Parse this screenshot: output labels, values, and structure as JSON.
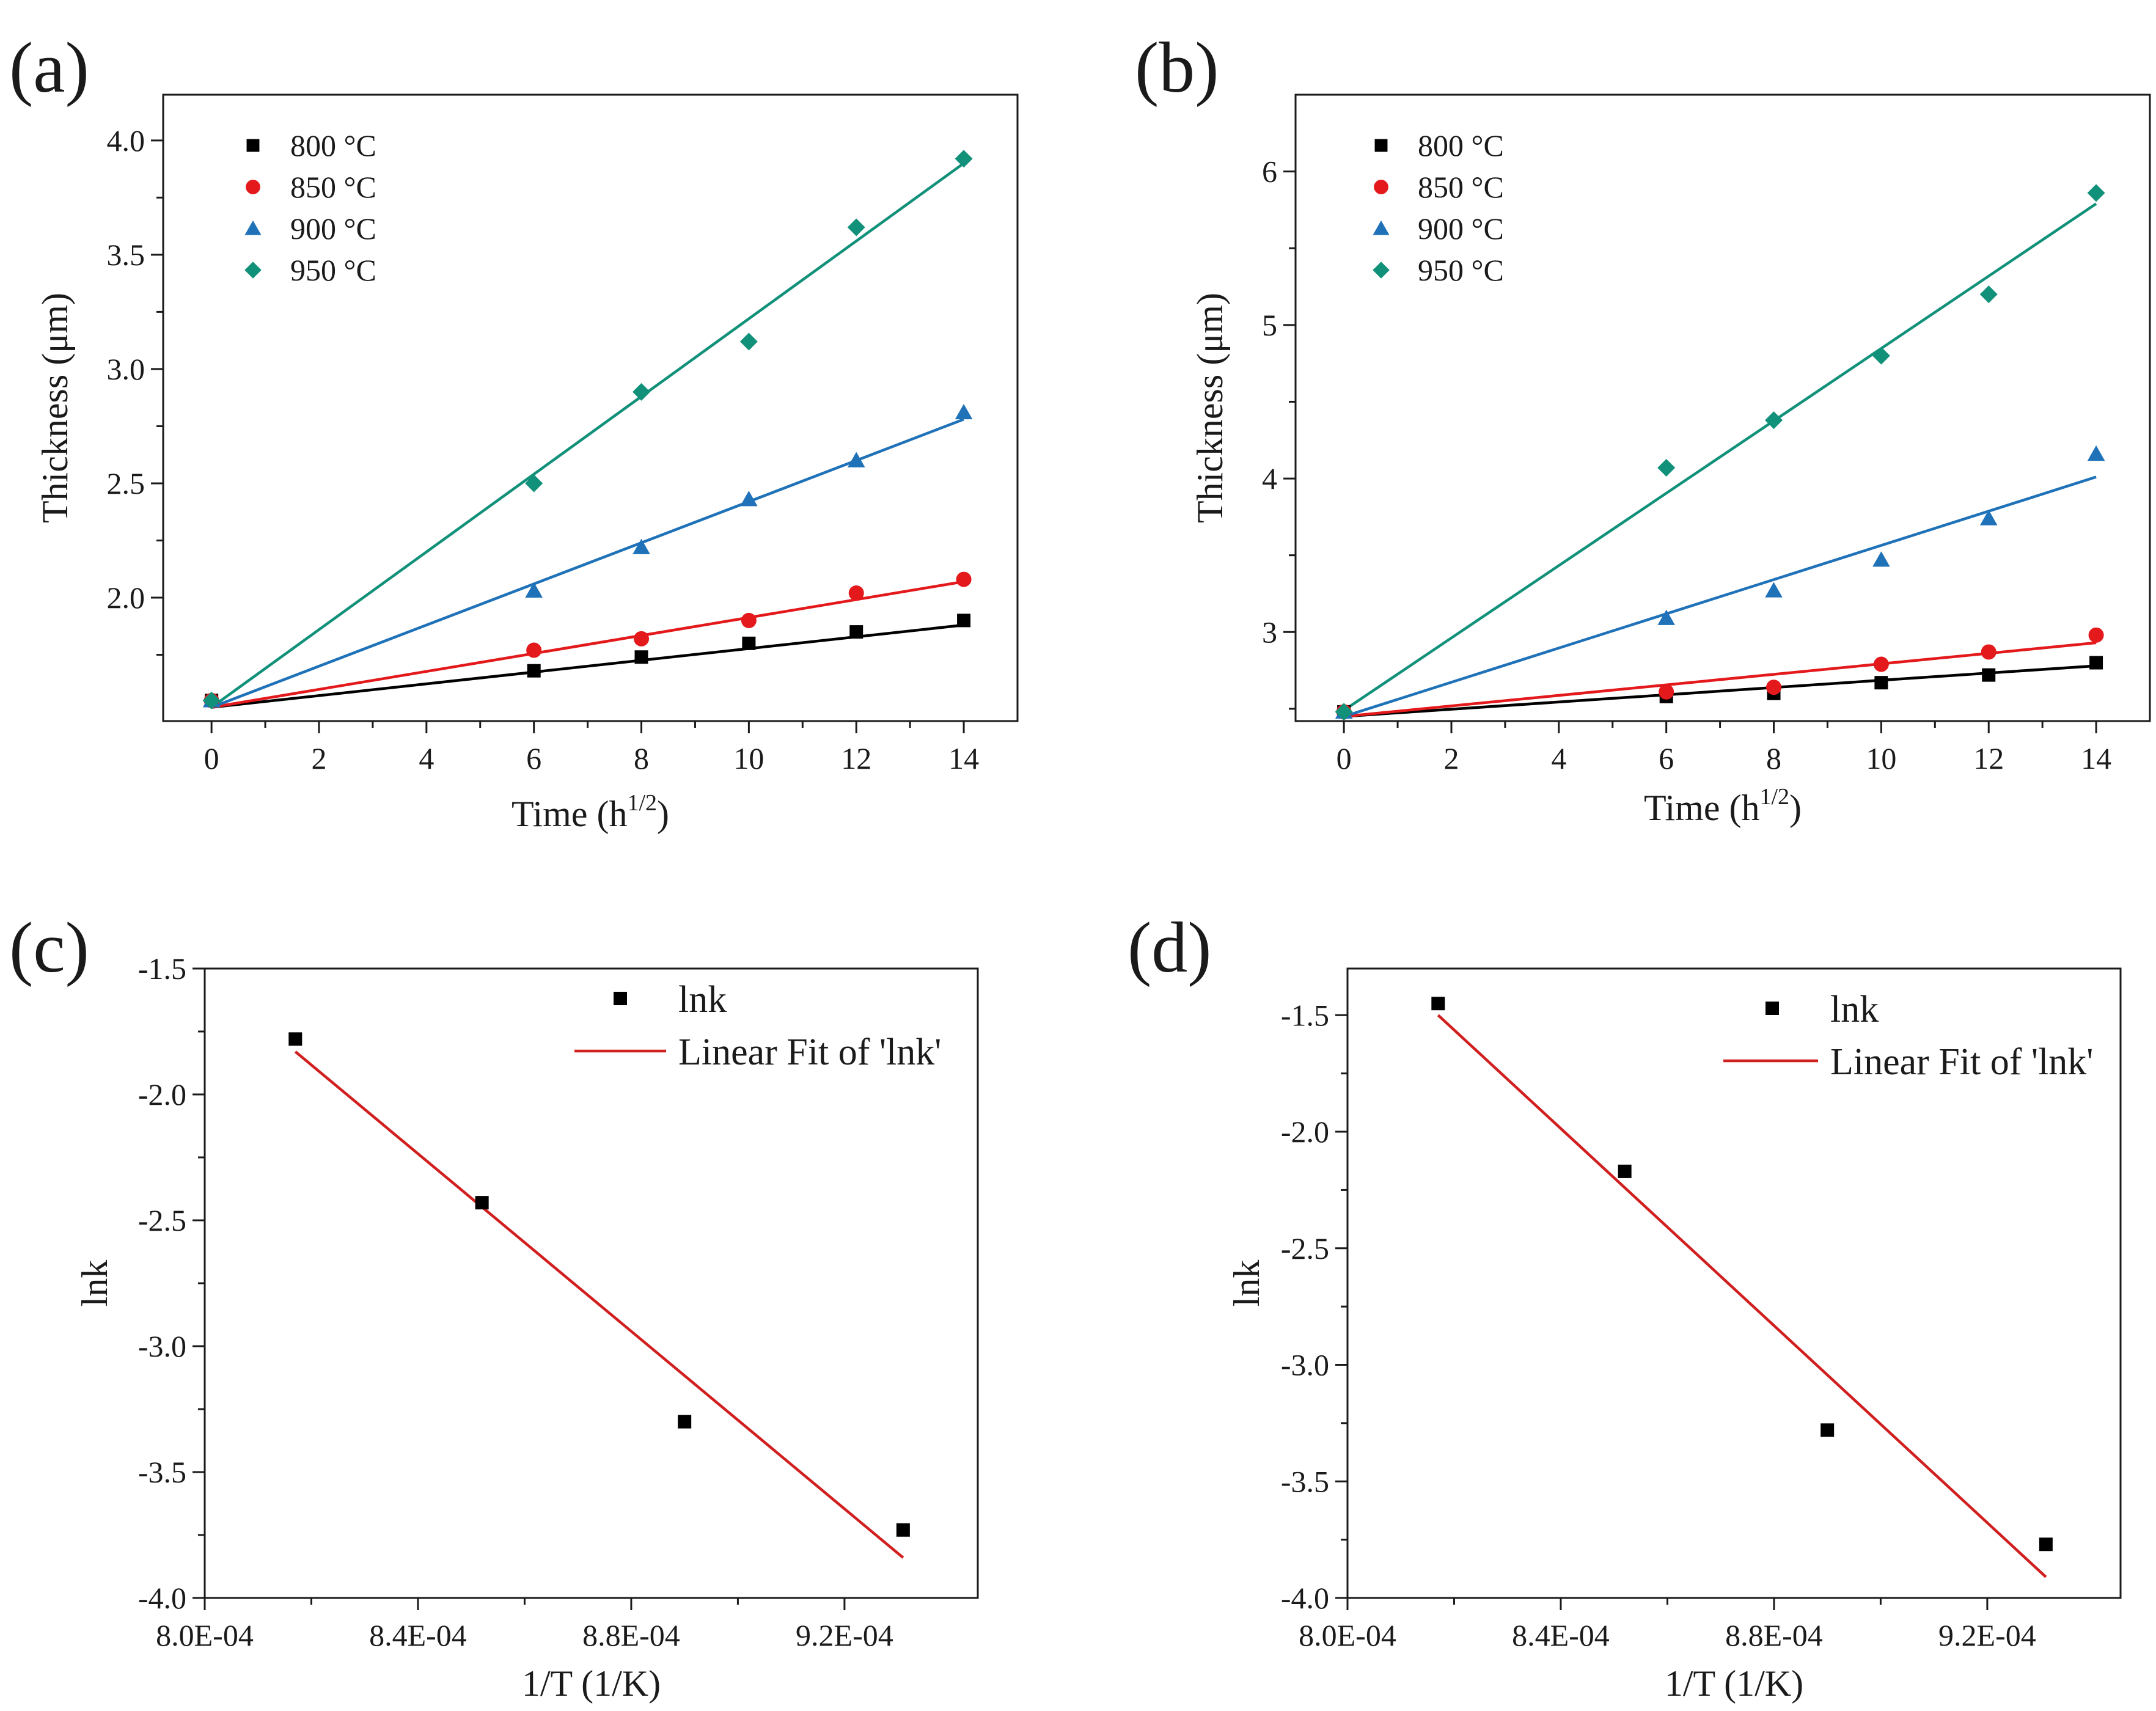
{
  "chart_data": [
    {
      "id": "a",
      "panel_label": "(a)",
      "type": "scatter",
      "xlabel": "Time (h",
      "xlabel_sup": "1/2",
      "xlabel_close": ")",
      "ylabel": "Thickness (μm)",
      "xlim": [
        -0.9,
        15
      ],
      "ylim": [
        1.46,
        4.2
      ],
      "xticks": [
        0,
        2,
        4,
        6,
        8,
        10,
        12,
        14
      ],
      "xtick_labels": [
        "0",
        "2",
        "4",
        "6",
        "8",
        "10",
        "12",
        "14"
      ],
      "yticks": [
        2.0,
        2.5,
        3.0,
        3.5,
        4.0
      ],
      "ytick_labels": [
        "2.0",
        "2.5",
        "3.0",
        "3.5",
        "4.0"
      ],
      "legend_position": "top-left",
      "series": [
        {
          "name": "800 °C",
          "color": "#000000",
          "marker": "square",
          "x": [
            0,
            6,
            8,
            10,
            12,
            14
          ],
          "y": [
            1.55,
            1.68,
            1.74,
            1.8,
            1.85,
            1.9
          ],
          "fit": [
            [
              0,
              1.52
            ],
            [
              14,
              1.88
            ]
          ]
        },
        {
          "name": "850 °C",
          "color": "#e3191c",
          "marker": "circle",
          "x": [
            0,
            6,
            8,
            10,
            12,
            14
          ],
          "y": [
            1.55,
            1.77,
            1.82,
            1.9,
            2.02,
            2.08
          ],
          "fit": [
            [
              0,
              1.52
            ],
            [
              14,
              2.07
            ]
          ]
        },
        {
          "name": "900 °C",
          "color": "#1f72b8",
          "marker": "triangle",
          "x": [
            0,
            6,
            8,
            10,
            12,
            14
          ],
          "y": [
            1.55,
            2.03,
            2.22,
            2.43,
            2.6,
            2.81
          ],
          "fit": [
            [
              0,
              1.52
            ],
            [
              14,
              2.78
            ]
          ]
        },
        {
          "name": "950 °C",
          "color": "#12917a",
          "marker": "diamond",
          "x": [
            0,
            6,
            8,
            10,
            12,
            14
          ],
          "y": [
            1.55,
            2.5,
            2.9,
            3.12,
            3.62,
            3.92
          ],
          "fit": [
            [
              0,
              1.52
            ],
            [
              14,
              3.9
            ]
          ]
        }
      ]
    },
    {
      "id": "b",
      "panel_label": "(b)",
      "type": "scatter",
      "xlabel": "Time (h",
      "xlabel_sup": "1/2",
      "xlabel_close": ")",
      "ylabel": "Thickness (μm)",
      "xlim": [
        -0.9,
        15
      ],
      "ylim": [
        2.42,
        6.5
      ],
      "xticks": [
        0,
        2,
        4,
        6,
        8,
        10,
        12,
        14
      ],
      "xtick_labels": [
        "0",
        "2",
        "4",
        "6",
        "8",
        "10",
        "12",
        "14"
      ],
      "yticks": [
        3,
        4,
        5,
        6
      ],
      "ytick_labels": [
        "3",
        "4",
        "5",
        "6"
      ],
      "legend_position": "top-left",
      "series": [
        {
          "name": "800 °C",
          "color": "#000000",
          "marker": "square",
          "x": [
            0,
            6,
            8,
            10,
            12,
            14
          ],
          "y": [
            2.48,
            2.58,
            2.6,
            2.67,
            2.72,
            2.8
          ],
          "fit": [
            [
              0,
              2.45
            ],
            [
              14,
              2.78
            ]
          ]
        },
        {
          "name": "850 °C",
          "color": "#e3191c",
          "marker": "circle",
          "x": [
            0,
            6,
            8,
            10,
            12,
            14
          ],
          "y": [
            2.48,
            2.61,
            2.64,
            2.79,
            2.87,
            2.98
          ],
          "fit": [
            [
              0,
              2.45
            ],
            [
              14,
              2.93
            ]
          ]
        },
        {
          "name": "900 °C",
          "color": "#1f72b8",
          "marker": "triangle",
          "x": [
            0,
            6,
            8,
            10,
            12,
            14
          ],
          "y": [
            2.48,
            3.09,
            3.27,
            3.47,
            3.74,
            4.16
          ],
          "fit": [
            [
              0,
              2.45
            ],
            [
              14,
              4.01
            ]
          ]
        },
        {
          "name": "950 °C",
          "color": "#12917a",
          "marker": "diamond",
          "x": [
            0,
            6,
            8,
            10,
            12,
            14
          ],
          "y": [
            2.48,
            4.07,
            4.38,
            4.8,
            5.2,
            5.86
          ],
          "fit": [
            [
              0,
              2.49
            ],
            [
              14,
              5.79
            ]
          ]
        }
      ]
    },
    {
      "id": "c",
      "panel_label": "(c)",
      "type": "scatter",
      "xlabel": "1/T (1/K)",
      "ylabel": "lnk",
      "xlim": [
        0.0008,
        0.000945
      ],
      "ylim": [
        -4.0,
        -1.5
      ],
      "xticks": [
        0.0008,
        0.00084,
        0.00088,
        0.00092
      ],
      "xtick_labels": [
        "8.0E-04",
        "8.4E-04",
        "8.8E-04",
        "9.2E-04"
      ],
      "yticks": [
        -4.0,
        -3.5,
        -3.0,
        -2.5,
        -2.0,
        -1.5
      ],
      "ytick_labels": [
        "-4.0",
        "-3.5",
        "-3.0",
        "-2.5",
        "-2.0",
        "-1.5"
      ],
      "legend_position": "top-right",
      "series": [
        {
          "name": "lnk",
          "color": "#000000",
          "marker": "square",
          "x": [
            0.000817,
            0.000852,
            0.00089,
            0.000931
          ],
          "y": [
            -1.78,
            -2.43,
            -3.3,
            -3.73
          ]
        },
        {
          "name": "Linear Fit of 'lnk'",
          "color": "#d11f1f",
          "marker": "line",
          "fit": [
            [
              0.000817,
              -1.83
            ],
            [
              0.000931,
              -3.84
            ]
          ]
        }
      ]
    },
    {
      "id": "d",
      "panel_label": "(d)",
      "type": "scatter",
      "xlabel": "1/T (1/K)",
      "ylabel": "lnk",
      "xlim": [
        0.0008,
        0.000945
      ],
      "ylim": [
        -4.0,
        -1.3
      ],
      "xticks": [
        0.0008,
        0.00084,
        0.00088,
        0.00092
      ],
      "xtick_labels": [
        "8.0E-04",
        "8.4E-04",
        "8.8E-04",
        "9.2E-04"
      ],
      "yticks": [
        -4.0,
        -3.5,
        -3.0,
        -2.5,
        -2.0,
        -1.5
      ],
      "ytick_labels": [
        "-4.0",
        "-3.5",
        "-3.0",
        "-2.5",
        "-2.0",
        "-1.5"
      ],
      "legend_position": "top-right",
      "series": [
        {
          "name": "lnk",
          "color": "#000000",
          "marker": "square",
          "x": [
            0.000817,
            0.000852,
            0.00089,
            0.000931
          ],
          "y": [
            -1.45,
            -2.17,
            -3.28,
            -3.77
          ]
        },
        {
          "name": "Linear Fit of 'lnk'",
          "color": "#d11f1f",
          "marker": "line",
          "fit": [
            [
              0.000817,
              -1.5
            ],
            [
              0.000931,
              -3.91
            ]
          ]
        }
      ]
    }
  ]
}
